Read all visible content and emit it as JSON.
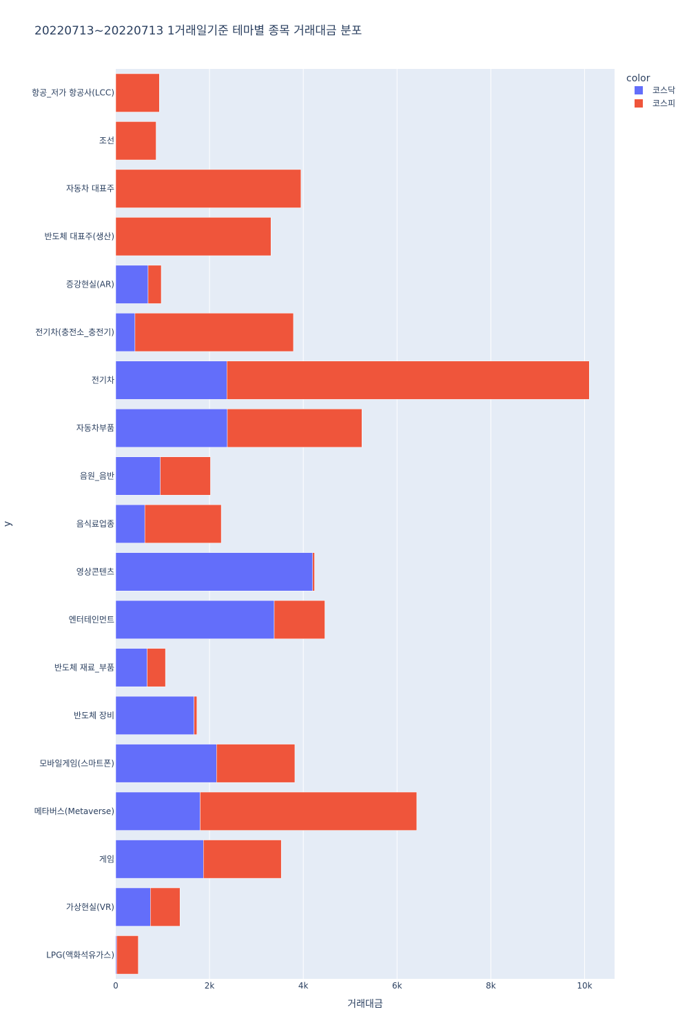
{
  "chart_data": {
    "type": "bar",
    "orientation": "horizontal",
    "barmode": "stack",
    "title": "20220713~20220713 1거래일기준 테마별 종목 거래대금 분포",
    "xlabel": "거래대금",
    "ylabel": "y",
    "xlim": [
      0,
      10640
    ],
    "xticks": [
      0,
      2000,
      4000,
      6000,
      8000,
      10000
    ],
    "xtick_labels": [
      "0",
      "2k",
      "4k",
      "6k",
      "8k",
      "10k"
    ],
    "grid": true,
    "legend_title": "color",
    "legend_position": "top-right",
    "categories": [
      "항공_저가 항공사(LCC)",
      "조선",
      "자동차 대표주",
      "반도체 대표주(생산)",
      "증강현실(AR)",
      "전기차(충전소_충전기)",
      "전기차",
      "자동차부품",
      "음원_음반",
      "음식료업종",
      "영상콘텐츠",
      "엔터테인먼트",
      "반도체 재료_부품",
      "반도체 장비",
      "모바일게임(스마트폰)",
      "메타버스(Metaverse)",
      "게임",
      "가상현실(VR)",
      "LPG(액화석유가스)"
    ],
    "series": [
      {
        "name": "코스닥",
        "color": "#636efa",
        "values": [
          0,
          0,
          0,
          0,
          690,
          410,
          2370,
          2380,
          950,
          620,
          4200,
          3380,
          670,
          1670,
          2150,
          1800,
          1870,
          740,
          20
        ]
      },
      {
        "name": "코스피",
        "color": "#ef553b",
        "values": [
          930,
          860,
          3950,
          3310,
          280,
          3380,
          7730,
          2870,
          1070,
          1630,
          40,
          1080,
          390,
          60,
          1670,
          4620,
          1660,
          630,
          460
        ]
      }
    ]
  }
}
